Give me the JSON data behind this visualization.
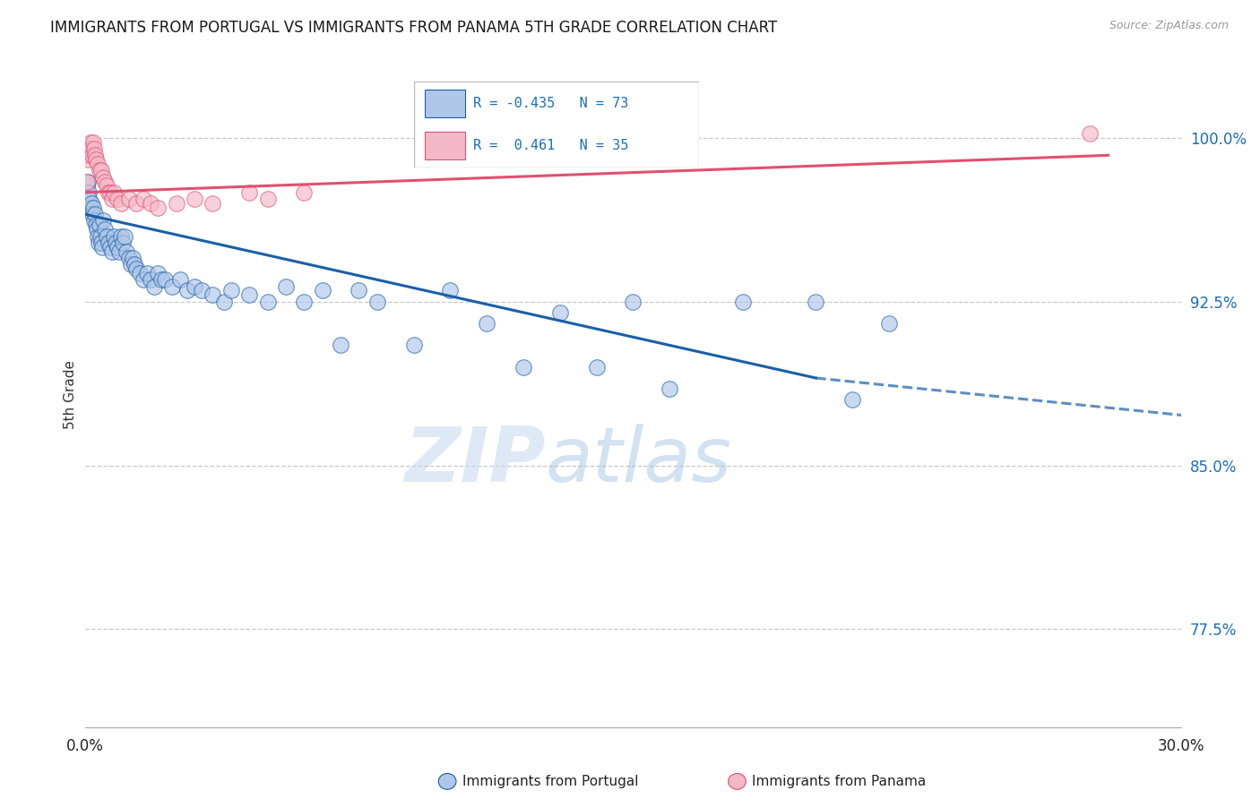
{
  "title": "IMMIGRANTS FROM PORTUGAL VS IMMIGRANTS FROM PANAMA 5TH GRADE CORRELATION CHART",
  "source": "Source: ZipAtlas.com",
  "ylabel": "5th Grade",
  "yticks": [
    77.5,
    85.0,
    92.5,
    100.0
  ],
  "xlim": [
    0.0,
    30.0
  ],
  "ylim": [
    73.0,
    103.5
  ],
  "portugal_R": -0.435,
  "portugal_N": 73,
  "panama_R": 0.461,
  "panama_N": 35,
  "portugal_color": "#aec6e8",
  "portugal_line_color": "#1a5fa8",
  "panama_color": "#f5b8c8",
  "panama_line_color": "#e05070",
  "watermark_zip": "ZIP",
  "watermark_atlas": "atlas",
  "portugal_scatter_x": [
    0.05,
    0.08,
    0.1,
    0.12,
    0.15,
    0.18,
    0.2,
    0.22,
    0.25,
    0.28,
    0.3,
    0.32,
    0.35,
    0.38,
    0.4,
    0.42,
    0.45,
    0.48,
    0.5,
    0.55,
    0.6,
    0.65,
    0.7,
    0.75,
    0.8,
    0.85,
    0.9,
    0.95,
    1.0,
    1.05,
    1.1,
    1.15,
    1.2,
    1.25,
    1.3,
    1.35,
    1.4,
    1.5,
    1.6,
    1.7,
    1.8,
    1.9,
    2.0,
    2.1,
    2.2,
    2.4,
    2.6,
    2.8,
    3.0,
    3.2,
    3.5,
    3.8,
    4.0,
    4.5,
    5.0,
    5.5,
    6.0,
    6.5,
    7.0,
    7.5,
    8.0,
    9.0,
    10.0,
    11.0,
    12.0,
    13.0,
    14.0,
    15.0,
    16.0,
    18.0,
    20.0,
    21.0,
    22.0
  ],
  "portugal_scatter_y": [
    97.8,
    98.0,
    97.5,
    97.2,
    96.8,
    97.0,
    96.5,
    96.8,
    96.2,
    96.5,
    96.0,
    95.8,
    95.5,
    95.2,
    96.0,
    95.5,
    95.2,
    95.0,
    96.2,
    95.8,
    95.5,
    95.2,
    95.0,
    94.8,
    95.5,
    95.2,
    95.0,
    94.8,
    95.5,
    95.2,
    95.5,
    94.8,
    94.5,
    94.2,
    94.5,
    94.2,
    94.0,
    93.8,
    93.5,
    93.8,
    93.5,
    93.2,
    93.8,
    93.5,
    93.5,
    93.2,
    93.5,
    93.0,
    93.2,
    93.0,
    92.8,
    92.5,
    93.0,
    92.8,
    92.5,
    93.2,
    92.5,
    93.0,
    90.5,
    93.0,
    92.5,
    90.5,
    93.0,
    91.5,
    89.5,
    92.0,
    89.5,
    92.5,
    88.5,
    92.5,
    92.5,
    88.0,
    91.5
  ],
  "panama_scatter_x": [
    0.05,
    0.08,
    0.1,
    0.12,
    0.15,
    0.18,
    0.2,
    0.22,
    0.25,
    0.28,
    0.3,
    0.35,
    0.4,
    0.45,
    0.5,
    0.55,
    0.6,
    0.65,
    0.7,
    0.75,
    0.8,
    0.9,
    1.0,
    1.2,
    1.4,
    1.6,
    1.8,
    2.0,
    2.5,
    3.0,
    3.5,
    4.5,
    5.0,
    6.0,
    27.5
  ],
  "panama_scatter_y": [
    98.0,
    99.0,
    99.2,
    99.5,
    99.8,
    99.5,
    99.2,
    99.8,
    99.5,
    99.2,
    99.0,
    98.8,
    98.5,
    98.5,
    98.2,
    98.0,
    97.8,
    97.5,
    97.5,
    97.2,
    97.5,
    97.2,
    97.0,
    97.2,
    97.0,
    97.2,
    97.0,
    96.8,
    97.0,
    97.2,
    97.0,
    97.5,
    97.2,
    97.5,
    100.2
  ],
  "portugal_line_x0": 0.0,
  "portugal_line_y0": 96.5,
  "portugal_line_x1": 20.0,
  "portugal_line_y1": 89.0,
  "portugal_dash_x0": 20.0,
  "portugal_dash_y0": 89.0,
  "portugal_dash_x1": 30.0,
  "portugal_dash_y1": 87.3,
  "panama_line_x0": 0.0,
  "panama_line_y0": 97.5,
  "panama_line_x1": 28.0,
  "panama_line_y1": 99.2
}
